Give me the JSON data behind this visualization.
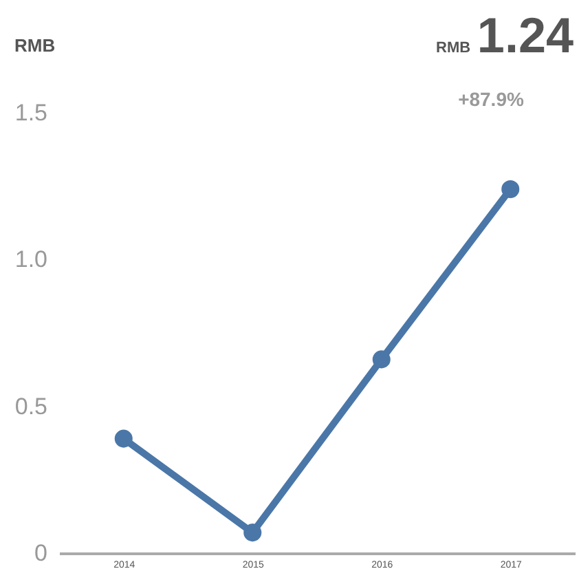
{
  "chart_data": {
    "type": "line",
    "ylabel": "RMB",
    "annotations": [
      "RMB",
      "1.24",
      "+87.9%"
    ],
    "categories": [
      "2014",
      "2015",
      "2016",
      "2017"
    ],
    "series": [
      {
        "color": "#4a77a8",
        "values": [
          0.39,
          0.07,
          0.66,
          1.24
        ]
      }
    ],
    "ylim": [
      0,
      1.5
    ],
    "yticks": [
      0,
      0.5,
      {
        "value": 1,
        "label": "1.0"
      },
      1.5
    ],
    "grid": false,
    "marker": "circle",
    "line_style": "solid"
  }
}
